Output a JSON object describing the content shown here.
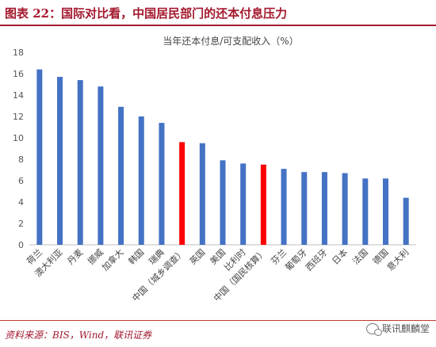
{
  "figure": {
    "title": "图表 22：国际对比看，中国居民部门的还本付息压力",
    "source": "资料来源：BIS，Wind，联讯证券",
    "watermark": "联讯麒麟堂"
  },
  "chart_data": {
    "type": "bar",
    "title": "当年还本付息/可支配收入（%）",
    "xlabel": "",
    "ylabel": "",
    "ylim": [
      0,
      18
    ],
    "yticks": [
      0,
      2,
      4,
      6,
      8,
      10,
      12,
      14,
      16,
      18
    ],
    "grid": false,
    "legend": "none",
    "categories": [
      "荷兰",
      "澳大利亚",
      "丹麦",
      "挪威",
      "加拿大",
      "韩国",
      "瑞典",
      "中国（城乡调查）",
      "英国",
      "美国",
      "比利时",
      "中国（国民核算）",
      "芬兰",
      "葡萄牙",
      "西班牙",
      "日本",
      "法国",
      "德国",
      "意大利"
    ],
    "values": [
      16.4,
      15.7,
      15.4,
      14.8,
      12.9,
      12.0,
      11.4,
      9.6,
      9.5,
      7.9,
      7.6,
      7.5,
      7.1,
      6.8,
      6.8,
      6.7,
      6.2,
      6.2,
      4.4
    ],
    "colors": {
      "default": "#4472c4",
      "highlight": "#ff0000",
      "highlighted": [
        "中国（城乡调查）",
        "中国（国民核算）"
      ]
    }
  }
}
